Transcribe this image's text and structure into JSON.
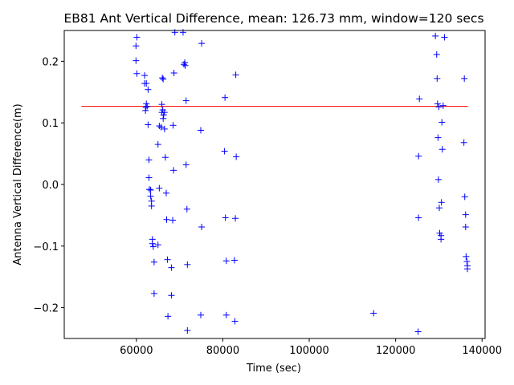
{
  "chart_data": {
    "type": "scatter",
    "title": "EB81 Ant Vertical Difference, mean: 126.73 mm, window=120 secs",
    "xlabel": "Time (sec)",
    "ylabel": "Antenna Vertical Difference(m)",
    "xlim": [
      43300,
      140700
    ],
    "ylim": [
      -0.25,
      0.25
    ],
    "xticks": [
      60000,
      80000,
      100000,
      120000,
      140000
    ],
    "yticks": [
      -0.2,
      -0.1,
      0.0,
      0.1,
      0.2
    ],
    "xtick_labels": [
      "60000",
      "80000",
      "100000",
      "120000",
      "140000"
    ],
    "ytick_labels": [
      "−0.2",
      "−0.1",
      "0.0",
      "0.1",
      "0.2"
    ],
    "grid": false,
    "marker": "+",
    "marker_color": "#0000ff",
    "mean_line": {
      "value": 0.12673,
      "x_range": [
        47300,
        136700
      ],
      "color": "#ff0000"
    },
    "points": [
      [
        60100,
        0.239
      ],
      [
        59900,
        0.225
      ],
      [
        59900,
        0.201
      ],
      [
        60100,
        0.18
      ],
      [
        61900,
        0.177
      ],
      [
        61900,
        0.164
      ],
      [
        62300,
        0.164
      ],
      [
        62700,
        0.154
      ],
      [
        62300,
        0.131
      ],
      [
        62500,
        0.127
      ],
      [
        62200,
        0.125
      ],
      [
        62100,
        0.12
      ],
      [
        62700,
        0.097
      ],
      [
        62900,
        0.04
      ],
      [
        62900,
        0.011
      ],
      [
        63000,
        -0.008
      ],
      [
        63300,
        -0.009
      ],
      [
        63300,
        -0.019
      ],
      [
        63500,
        -0.027
      ],
      [
        63500,
        -0.035
      ],
      [
        63700,
        -0.089
      ],
      [
        63700,
        -0.096
      ],
      [
        63900,
        -0.101
      ],
      [
        64100,
        -0.126
      ],
      [
        64100,
        -0.177
      ],
      [
        65000,
        -0.098
      ],
      [
        65000,
        0.065
      ],
      [
        65300,
        -0.006
      ],
      [
        65300,
        0.095
      ],
      [
        65700,
        0.093
      ],
      [
        66000,
        0.173
      ],
      [
        66200,
        0.171
      ],
      [
        65900,
        0.13
      ],
      [
        66100,
        0.121
      ],
      [
        65900,
        0.117
      ],
      [
        66500,
        0.117
      ],
      [
        66300,
        0.113
      ],
      [
        66200,
        0.107
      ],
      [
        66500,
        0.09
      ],
      [
        66700,
        0.044
      ],
      [
        66900,
        -0.014
      ],
      [
        67000,
        -0.057
      ],
      [
        67200,
        -0.122
      ],
      [
        67300,
        -0.214
      ],
      [
        68100,
        -0.135
      ],
      [
        68100,
        -0.18
      ],
      [
        68400,
        -0.058
      ],
      [
        68600,
        0.023
      ],
      [
        68500,
        0.096
      ],
      [
        68700,
        0.181
      ],
      [
        68900,
        0.247
      ],
      [
        70800,
        0.247
      ],
      [
        71000,
        0.195
      ],
      [
        71200,
        0.198
      ],
      [
        71300,
        0.193
      ],
      [
        71500,
        0.136
      ],
      [
        71500,
        0.032
      ],
      [
        71700,
        -0.04
      ],
      [
        71800,
        -0.13
      ],
      [
        71800,
        -0.237
      ],
      [
        75100,
        0.229
      ],
      [
        74900,
        0.088
      ],
      [
        75100,
        -0.069
      ],
      [
        74900,
        -0.212
      ],
      [
        80500,
        0.141
      ],
      [
        80400,
        0.054
      ],
      [
        80600,
        -0.054
      ],
      [
        80800,
        -0.124
      ],
      [
        80800,
        -0.212
      ],
      [
        82700,
        -0.123
      ],
      [
        82800,
        -0.222
      ],
      [
        83000,
        0.178
      ],
      [
        83100,
        0.045
      ],
      [
        82900,
        -0.055
      ],
      [
        114900,
        -0.209
      ],
      [
        125500,
        0.139
      ],
      [
        125300,
        0.046
      ],
      [
        125300,
        -0.054
      ],
      [
        125200,
        -0.239
      ],
      [
        129200,
        0.241
      ],
      [
        129500,
        0.211
      ],
      [
        129600,
        0.172
      ],
      [
        129700,
        0.131
      ],
      [
        130000,
        0.126
      ],
      [
        131000,
        0.128
      ],
      [
        129800,
        0.076
      ],
      [
        130700,
        0.101
      ],
      [
        130800,
        0.057
      ],
      [
        129900,
        0.008
      ],
      [
        130600,
        -0.029
      ],
      [
        130100,
        -0.038
      ],
      [
        130200,
        -0.079
      ],
      [
        130500,
        -0.083
      ],
      [
        130500,
        -0.089
      ],
      [
        131300,
        0.239
      ],
      [
        135900,
        0.172
      ],
      [
        135800,
        0.068
      ],
      [
        136000,
        -0.02
      ],
      [
        136200,
        -0.049
      ],
      [
        136200,
        -0.069
      ],
      [
        136300,
        -0.117
      ],
      [
        136500,
        -0.125
      ],
      [
        136600,
        -0.132
      ],
      [
        136600,
        -0.137
      ]
    ]
  }
}
